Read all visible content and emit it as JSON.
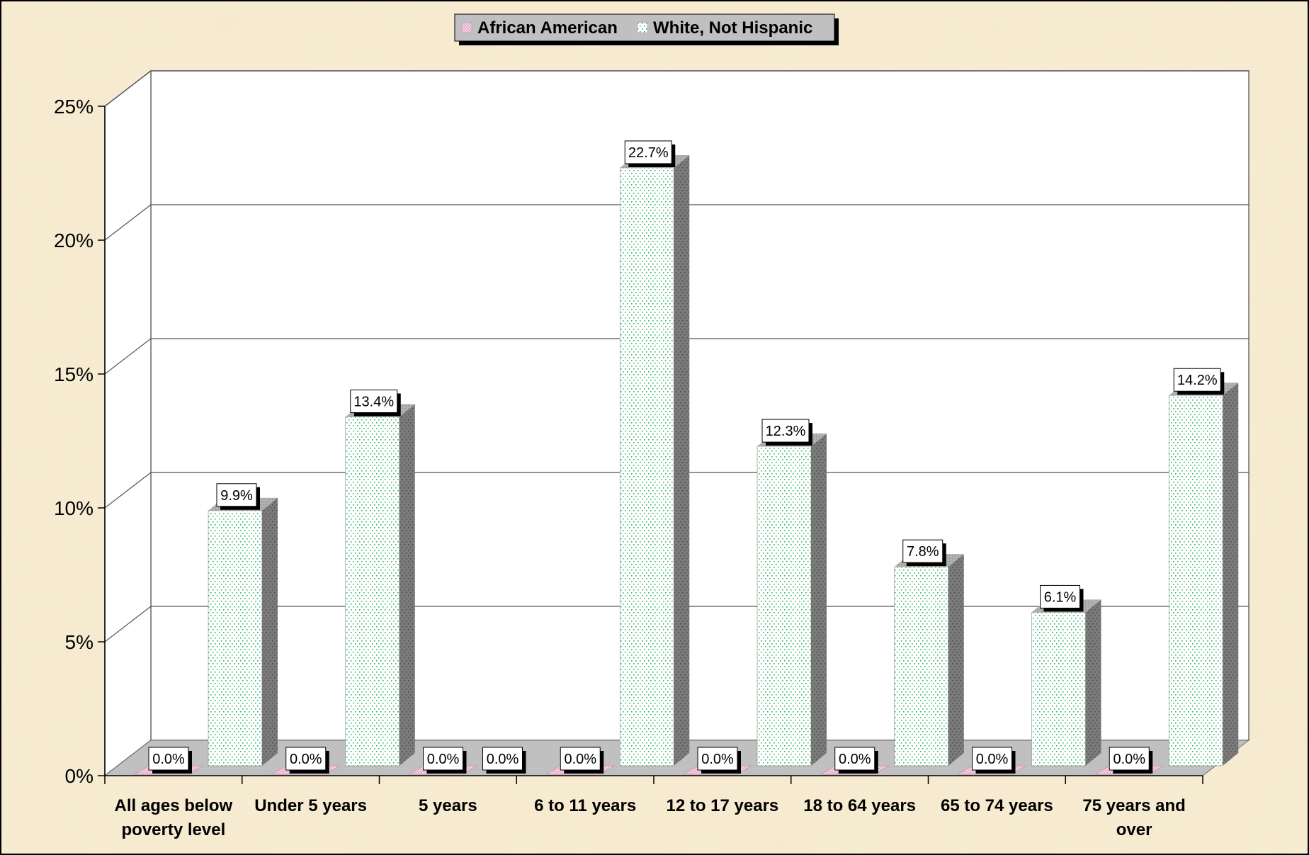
{
  "chart_data": {
    "type": "bar",
    "categories": [
      [
        "All ages below",
        "poverty level"
      ],
      [
        "Under 5 years"
      ],
      [
        "5 years"
      ],
      [
        "6 to 11 years"
      ],
      [
        "12 to 17 years"
      ],
      [
        "18 to 64 years"
      ],
      [
        "65 to 74 years"
      ],
      [
        "75 years and",
        "over"
      ]
    ],
    "series": [
      {
        "name": "African American",
        "values": [
          0.0,
          0.0,
          0.0,
          0.0,
          0.0,
          0.0,
          0.0,
          0.0
        ],
        "color": "#e8a6c8"
      },
      {
        "name": "White, Not Hispanic",
        "values": [
          9.9,
          13.4,
          0.0,
          22.7,
          12.3,
          7.8,
          6.1,
          14.2
        ],
        "color": "#2fb56a"
      }
    ],
    "data_labels": {
      "African American": [
        "0.0%",
        "0.0%",
        "0.0%",
        "0.0%",
        "0.0%",
        "0.0%",
        "0.0%",
        "0.0%"
      ],
      "White, Not Hispanic": [
        "9.9%",
        "13.4%",
        "0.0%",
        "22.7%",
        "12.3%",
        "7.8%",
        "6.1%",
        "14.2%"
      ]
    },
    "y_ticks": [
      "0%",
      "5%",
      "10%",
      "15%",
      "20%",
      "25%"
    ],
    "ylim": [
      0,
      25
    ],
    "grid": true,
    "legend_position": "top-center",
    "three_d": true,
    "colors": {
      "background": "#f5ead0",
      "plot_back": "#ffffff",
      "floor": "#c0c0c0",
      "bar_side": "#7a7a7a",
      "bar_top": "#b0b0b0"
    }
  }
}
